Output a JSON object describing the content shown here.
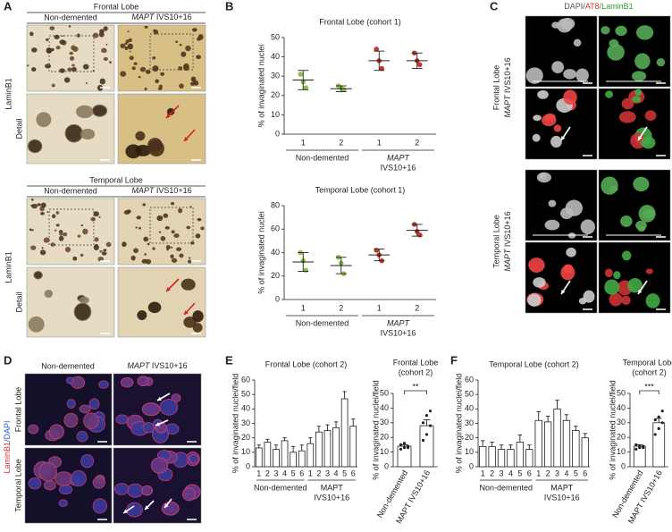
{
  "panel_labels": [
    "A",
    "B",
    "C",
    "D",
    "E",
    "F"
  ],
  "panel_a": {
    "sections": [
      {
        "title": "Frontal Lobe",
        "control": "Non-demented",
        "gene": "MAPT",
        "variant": " IVS10+16",
        "stain": "LaminB1",
        "detail": "Detail"
      },
      {
        "title": "Temporal Lobe",
        "control": "Non-demented",
        "gene": "MAPT",
        "variant": " IVS10+16",
        "stain": "LaminB1",
        "detail": "Detail"
      }
    ]
  },
  "panel_c": {
    "header": [
      {
        "text": "DAPI/",
        "color": "#555555"
      },
      {
        "text": "AT8",
        "color": "#d32f2f"
      },
      {
        "text": "/LaminB1",
        "color": "#2e9e2e"
      }
    ],
    "rows": [
      {
        "region": "Frontal Lobe",
        "gene": "MAPT",
        "variant": " IVS10+16"
      },
      {
        "region": "Temporal Lobe",
        "gene": "MAPT",
        "variant": " IVS10+16"
      }
    ]
  },
  "panel_d": {
    "control": "Non-demented",
    "gene": "MAPT",
    "variant": " IVS10+16",
    "stain": [
      {
        "text": "LaminB1",
        "color": "#d32f2f"
      },
      {
        "text": "/DAPI",
        "color": "#3060d0"
      }
    ],
    "rows": [
      "Frontal Lobe",
      "Temporal Lobe"
    ]
  },
  "chart_data": [
    {
      "type": "scatter",
      "title": "Frontal Lobe (cohort 1)",
      "ylabel": "% of invaginated nuclei",
      "ylim": [
        0,
        50
      ],
      "yticks": [
        0,
        10,
        20,
        30,
        40,
        50
      ],
      "groups": [
        {
          "name": "Non-demented",
          "color": "#8bc34a",
          "categories": [
            "1",
            "2"
          ],
          "points": [
            [
              31,
              27,
              24
            ],
            [
              25,
              24,
              23
            ]
          ],
          "means": [
            28,
            23.5
          ],
          "errors": [
            5,
            1.5
          ]
        },
        {
          "name": "MAPT",
          "subname": "IVS10+16",
          "color": "#c0392b",
          "categories": [
            "1",
            "2"
          ],
          "points": [
            [
              44,
              38,
              34
            ],
            [
              42,
              38,
              36
            ]
          ],
          "means": [
            38,
            38
          ],
          "errors": [
            5,
            4
          ]
        }
      ]
    },
    {
      "type": "scatter",
      "title": "Temporal Lobe (cohort 1)",
      "ylabel": "% of invaginated nuclei",
      "ylim": [
        0,
        80
      ],
      "yticks": [
        0,
        20,
        40,
        60,
        80
      ],
      "groups": [
        {
          "name": "Non-demented",
          "color": "#8bc34a",
          "categories": [
            "1",
            "2"
          ],
          "points": [
            [
              40,
              33,
              25
            ],
            [
              36,
              31,
              22
            ]
          ],
          "means": [
            32,
            29
          ],
          "errors": [
            8,
            7
          ]
        },
        {
          "name": "MAPT",
          "subname": "IVS10+16",
          "color": "#c0392b",
          "categories": [
            "1",
            "2"
          ],
          "points": [
            [
              42,
              38,
              33
            ],
            [
              64,
              58,
              55
            ]
          ],
          "means": [
            38,
            59
          ],
          "errors": [
            5,
            5
          ]
        }
      ]
    },
    {
      "type": "bar",
      "title": "Frontal Lobe (cohort 2)",
      "ylabel": "% of invaginated nuclei/field",
      "ylim": [
        0,
        60
      ],
      "yticks": [
        0,
        10,
        20,
        30,
        40,
        50,
        60
      ],
      "groups": [
        {
          "name": "Non-demented",
          "categories": [
            "1",
            "2",
            "3",
            "4",
            "5",
            "6"
          ],
          "values": [
            13,
            17,
            12,
            18,
            10,
            11
          ],
          "errors": [
            2,
            2,
            3,
            2,
            4,
            4
          ]
        },
        {
          "name": "MAPT",
          "subname": "IVS10+16",
          "categories": [
            "1",
            "2",
            "3",
            "4",
            "5",
            "6"
          ],
          "values": [
            16,
            24,
            25,
            27,
            47,
            28
          ],
          "errors": [
            4,
            4,
            4,
            4,
            5,
            5
          ]
        }
      ]
    },
    {
      "type": "bar",
      "title": "Frontal Lobe",
      "subtitle": "(cohort 2)",
      "ylabel": "% of invaginated nuclei/field",
      "ylim": [
        0,
        50
      ],
      "yticks": [
        0,
        10,
        20,
        30,
        40,
        50
      ],
      "categories": [
        "Non-demented",
        "MAPT IVS10+16"
      ],
      "values": [
        14,
        28
      ],
      "errors": [
        1,
        4
      ],
      "points": [
        [
          12,
          13,
          14,
          15,
          16,
          13
        ],
        [
          18,
          22,
          28,
          30,
          35,
          38
        ]
      ],
      "significance": "**"
    },
    {
      "type": "bar",
      "title": "Temporal Lobe (cohort 2)",
      "ylabel": "% of invaginated nuclei/field",
      "ylim": [
        0,
        60
      ],
      "yticks": [
        0,
        10,
        20,
        30,
        40,
        50,
        60
      ],
      "groups": [
        {
          "name": "Non-demented",
          "categories": [
            "1",
            "2",
            "3",
            "4",
            "5",
            "6"
          ],
          "values": [
            14,
            14,
            12,
            12,
            17,
            12
          ],
          "errors": [
            4,
            3,
            3,
            3,
            5,
            3
          ]
        },
        {
          "name": "MAPT",
          "subname": "IVS10+16",
          "categories": [
            "1",
            "2",
            "3",
            "4",
            "5",
            "6"
          ],
          "values": [
            32,
            31,
            40,
            32,
            25,
            20
          ],
          "errors": [
            6,
            4,
            6,
            4,
            3,
            3
          ]
        }
      ]
    },
    {
      "type": "bar",
      "title": "Temporal Lobe",
      "subtitle": "(cohort 2)",
      "ylabel": "% of invaginated nuclei/field",
      "ylim": [
        0,
        50
      ],
      "yticks": [
        0,
        10,
        20,
        30,
        40,
        50
      ],
      "categories": [
        "Non-demented",
        "MAPT IVS10+16"
      ],
      "values": [
        14,
        30
      ],
      "errors": [
        1,
        3
      ],
      "points": [
        [
          12,
          13,
          14,
          15,
          14,
          13
        ],
        [
          22,
          26,
          30,
          32,
          34,
          38
        ]
      ],
      "significance": "***"
    }
  ]
}
